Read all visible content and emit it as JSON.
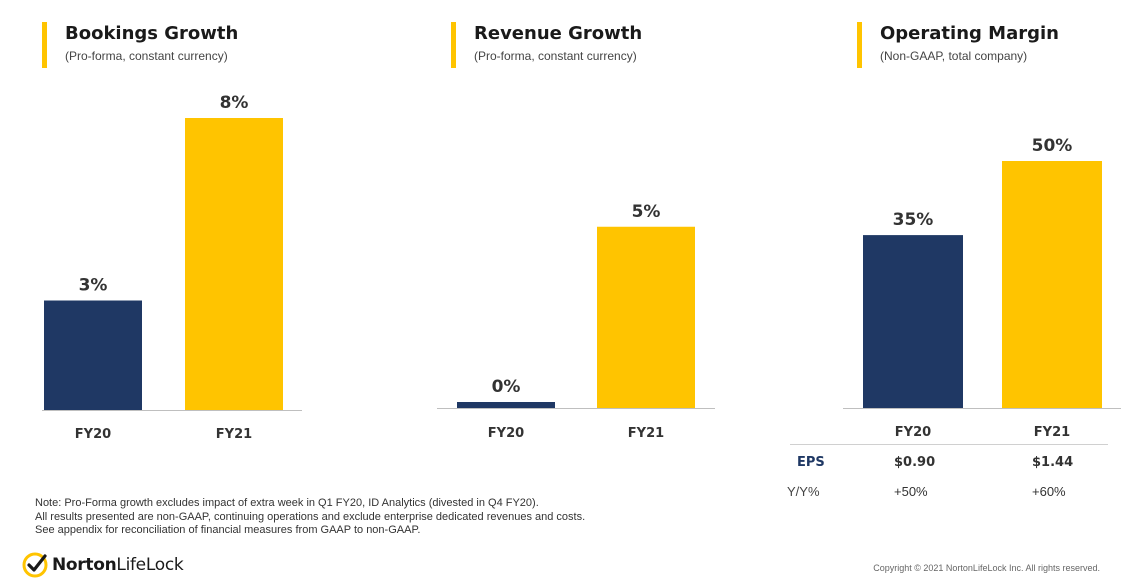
{
  "colors": {
    "fy20": "#1F3864",
    "fy21": "#FFC400",
    "accent": "#FFC400",
    "axis": "#bfbfbf"
  },
  "chart_data": [
    {
      "type": "bar",
      "title": "Bookings Growth",
      "subtitle": "(Pro-forma, constant currency)",
      "categories": [
        "FY20",
        "FY21"
      ],
      "values": [
        3,
        8
      ],
      "data_labels": [
        "3%",
        "8%"
      ],
      "ylim": [
        0,
        8
      ]
    },
    {
      "type": "bar",
      "title": "Revenue Growth",
      "subtitle": "(Pro-forma, constant currency)",
      "categories": [
        "FY20",
        "FY21"
      ],
      "values": [
        0,
        5
      ],
      "data_labels": [
        "0%",
        "5%"
      ],
      "ylim": [
        0,
        8
      ]
    },
    {
      "type": "bar",
      "title": "Operating Margin",
      "subtitle": "(Non-GAAP, total company)",
      "categories": [
        "FY20",
        "FY21"
      ],
      "values": [
        35,
        50
      ],
      "data_labels": [
        "35%",
        "50%"
      ],
      "ylim": [
        0,
        50
      ]
    }
  ],
  "eps_table": {
    "eps_label": "EPS",
    "eps_values": [
      "$0.90",
      "$1.44"
    ],
    "yoy_label": "Y/Y%",
    "yoy_values": [
      "+50%",
      "+60%"
    ]
  },
  "note": {
    "line1": "Note: Pro-Forma growth excludes impact of extra week in Q1 FY20, ID Analytics (divested in Q4 FY20).",
    "line2": "All results presented are non-GAAP, continuing operations and exclude enterprise dedicated revenues and costs.",
    "line3": "See appendix for reconciliation of financial measures from GAAP to non-GAAP."
  },
  "logo": {
    "part1": "Norton",
    "part2": "LifeLock",
    "icon": "check-circle-icon"
  },
  "copyright": "Copyright © 2021 NortonLifeLock Inc. All rights reserved."
}
